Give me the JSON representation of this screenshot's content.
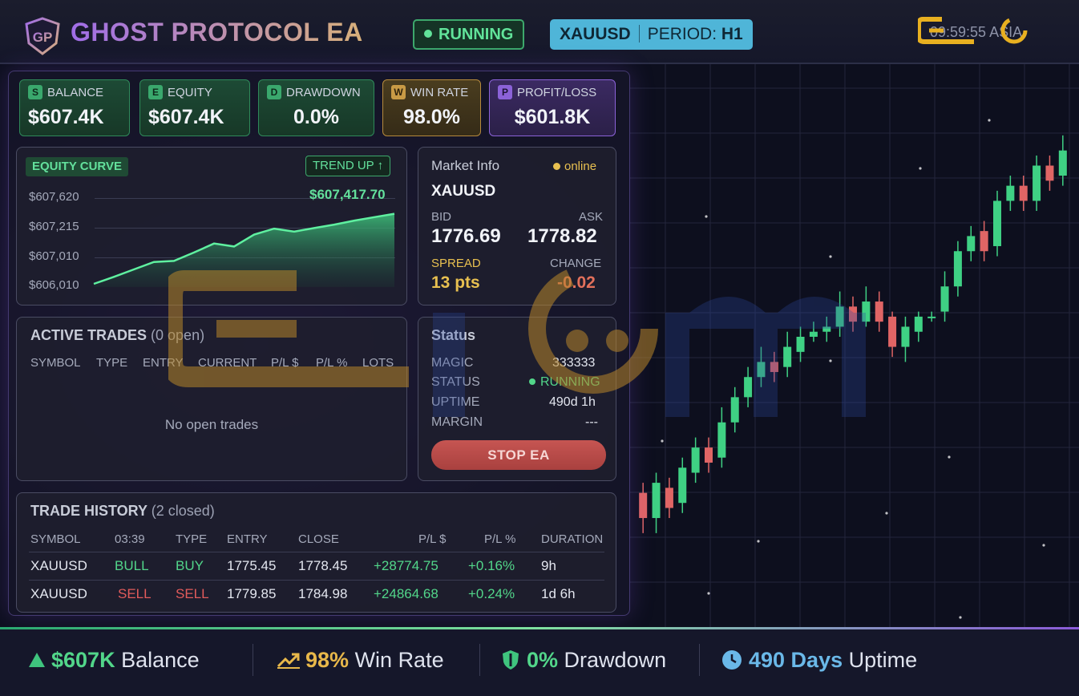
{
  "header": {
    "title": "GHOST PROTOCOL EA",
    "status": "RUNNING",
    "symbol": "XAUUSD",
    "period_label": "PERIOD:",
    "period_value": "H1",
    "clock": "09:59:55",
    "session": "ASIA"
  },
  "stats": [
    {
      "icon": "S",
      "label": "BALANCE",
      "value": "$607.4K"
    },
    {
      "icon": "E",
      "label": "EQUITY",
      "value": "$607.4K"
    },
    {
      "icon": "D",
      "label": "DRAWDOWN",
      "value": "0.0%"
    },
    {
      "icon": "W",
      "label": "WIN RATE",
      "value": "98.0%"
    },
    {
      "icon": "P",
      "label": "PROFIT/LOSS",
      "value": "$601.8K"
    }
  ],
  "equity": {
    "title": "EQUITY CURVE",
    "trend": "TREND UP ↑",
    "current": "$607,417.70",
    "y_labels": [
      "$607,620",
      "$607,215",
      "$607,010",
      "$606,010"
    ]
  },
  "chart_data": {
    "type": "area",
    "title": "EQUITY CURVE",
    "y_tick_labels": [
      "$607,620",
      "$607,215",
      "$607,010",
      "$606,010"
    ],
    "values": [
      606010,
      606150,
      606300,
      606450,
      606470,
      606640,
      606820,
      606760,
      607000,
      607120,
      607060,
      607130,
      607200,
      607280,
      607350,
      607417.7
    ]
  },
  "market": {
    "title": "Market Info",
    "online": "online",
    "symbol": "XAUUSD",
    "bid_label": "BID",
    "ask_label": "ASK",
    "bid": "1776.69",
    "ask": "1778.82",
    "spread_label": "SPREAD",
    "change_label": "CHANGE",
    "spread": "13 pts",
    "change": "-0.02"
  },
  "active_trades": {
    "title": "ACTIVE TRADES",
    "count": "(0 open)",
    "columns": [
      "SYMBOL",
      "TYPE",
      "ENTRY",
      "CURRENT",
      "P/L $",
      "P/L %",
      "LOTS"
    ],
    "empty": "No open trades"
  },
  "status": {
    "title": "Status",
    "rows": [
      {
        "label": "MAGIC",
        "value": "333333"
      },
      {
        "label": "STATUS",
        "value": "RUNNING"
      },
      {
        "label": "UPTIME",
        "value": "490d 1h"
      },
      {
        "label": "MARGIN",
        "value": "---"
      }
    ],
    "stop_button": "STOP EA"
  },
  "history": {
    "title": "TRADE HISTORY",
    "count": "(2 closed)",
    "columns": [
      "SYMBOL",
      "03:39",
      "TYPE",
      "ENTRY",
      "CLOSE",
      "P/L $",
      "P/L %",
      "DURATION"
    ],
    "rows": [
      {
        "symbol": "XAUUSD",
        "signal": "BULL",
        "type": "BUY",
        "entry": "1775.45",
        "close": "1778.45",
        "pl": "+28774.75",
        "plp": "+0.16%",
        "duration": "9h"
      },
      {
        "symbol": "XAUUSD",
        "signal": "SELL",
        "type": "SELL",
        "entry": "1779.85",
        "close": "1784.98",
        "pl": "+24864.68",
        "plp": "+0.24%",
        "duration": "1d 6h"
      }
    ]
  },
  "footer": {
    "balance_value": "$607K",
    "balance_label": "Balance",
    "winrate_value": "98%",
    "winrate_label": "Win Rate",
    "drawdown_value": "0%",
    "drawdown_label": "Drawdown",
    "uptime_value": "490 Days",
    "uptime_label": "Uptime"
  },
  "candles": [
    {
      "o": 1762,
      "c": 1757,
      "h": 1764,
      "l": 1754
    },
    {
      "o": 1757,
      "c": 1764,
      "h": 1766,
      "l": 1754
    },
    {
      "o": 1763,
      "c": 1759,
      "h": 1765,
      "l": 1757
    },
    {
      "o": 1760,
      "c": 1767,
      "h": 1769,
      "l": 1758
    },
    {
      "o": 1766,
      "c": 1771,
      "h": 1773,
      "l": 1764
    },
    {
      "o": 1771,
      "c": 1768,
      "h": 1773,
      "l": 1766
    },
    {
      "o": 1769,
      "c": 1776,
      "h": 1779,
      "l": 1767
    },
    {
      "o": 1776,
      "c": 1781,
      "h": 1783,
      "l": 1774
    },
    {
      "o": 1781,
      "c": 1785,
      "h": 1787,
      "l": 1779
    },
    {
      "o": 1785,
      "c": 1788,
      "h": 1791,
      "l": 1783
    },
    {
      "o": 1788,
      "c": 1786,
      "h": 1790,
      "l": 1784
    },
    {
      "o": 1787,
      "c": 1791,
      "h": 1794,
      "l": 1785
    },
    {
      "o": 1790,
      "c": 1793,
      "h": 1795,
      "l": 1788
    },
    {
      "o": 1793,
      "c": 1794,
      "h": 1796,
      "l": 1792
    },
    {
      "o": 1794,
      "c": 1795,
      "h": 1797,
      "l": 1792
    },
    {
      "o": 1795,
      "c": 1799,
      "h": 1802,
      "l": 1793
    },
    {
      "o": 1799,
      "c": 1796,
      "h": 1801,
      "l": 1794
    },
    {
      "o": 1796,
      "c": 1800,
      "h": 1803,
      "l": 1795
    },
    {
      "o": 1800,
      "c": 1796,
      "h": 1802,
      "l": 1794
    },
    {
      "o": 1797,
      "c": 1791,
      "h": 1798,
      "l": 1789
    },
    {
      "o": 1791,
      "c": 1795,
      "h": 1797,
      "l": 1788
    },
    {
      "o": 1794,
      "c": 1797,
      "h": 1798,
      "l": 1792
    },
    {
      "o": 1797,
      "c": 1797,
      "h": 1798,
      "l": 1796
    },
    {
      "o": 1798,
      "c": 1803,
      "h": 1806,
      "l": 1796
    },
    {
      "o": 1803,
      "c": 1810,
      "h": 1812,
      "l": 1801
    },
    {
      "o": 1810,
      "c": 1813,
      "h": 1815,
      "l": 1808
    },
    {
      "o": 1814,
      "c": 1810,
      "h": 1816,
      "l": 1808
    },
    {
      "o": 1811,
      "c": 1820,
      "h": 1822,
      "l": 1809
    },
    {
      "o": 1820,
      "c": 1823,
      "h": 1825,
      "l": 1818
    },
    {
      "o": 1823,
      "c": 1820,
      "h": 1825,
      "l": 1818
    },
    {
      "o": 1820,
      "c": 1827,
      "h": 1829,
      "l": 1818
    },
    {
      "o": 1827,
      "c": 1824,
      "h": 1829,
      "l": 1822
    },
    {
      "o": 1825,
      "c": 1830,
      "h": 1833,
      "l": 1823
    }
  ]
}
